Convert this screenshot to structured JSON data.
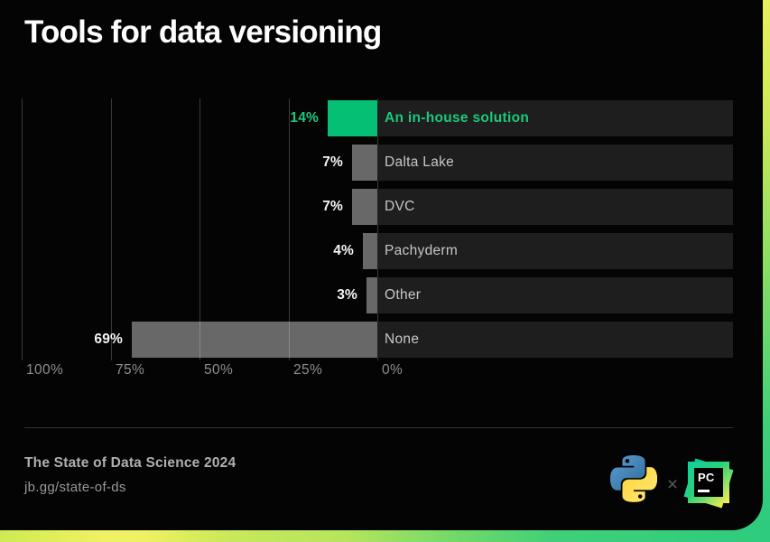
{
  "title": "Tools for data versioning",
  "chart_data": {
    "type": "bar",
    "orientation": "horizontal",
    "direction": "right-to-left",
    "title": "Tools for data versioning",
    "categories": [
      "An in-house solution",
      "Dalta Lake",
      "DVC",
      "Pachyderm",
      "Other",
      "None"
    ],
    "values": [
      14,
      7,
      7,
      4,
      3,
      69
    ],
    "value_labels": [
      "14%",
      "7%",
      "7%",
      "4%",
      "3%",
      "69%"
    ],
    "highlighted_index": 0,
    "axis_ticks": [
      "100%",
      "75%",
      "50%",
      "25%",
      "0%"
    ],
    "axis_tick_values": [
      100,
      75,
      50,
      25,
      0
    ],
    "xlim": [
      0,
      100
    ],
    "grid": true,
    "legend": "none",
    "colors": {
      "highlight_bar": "#05bf75",
      "highlight_text": "#1ac97e",
      "bar": "rgba(255,255,255,0.40)",
      "row_background": "#1e1e1e",
      "value_text": "#f5f5f5",
      "label_text": "#c7c7c7",
      "tick_text": "#8e8e8e",
      "gridline": "#3a3a3a"
    }
  },
  "footer": {
    "source_title": "The State of Data Science 2024",
    "source_url": "jb.gg/state-of-ds",
    "separator": "×",
    "pycharm_text": "PC"
  }
}
